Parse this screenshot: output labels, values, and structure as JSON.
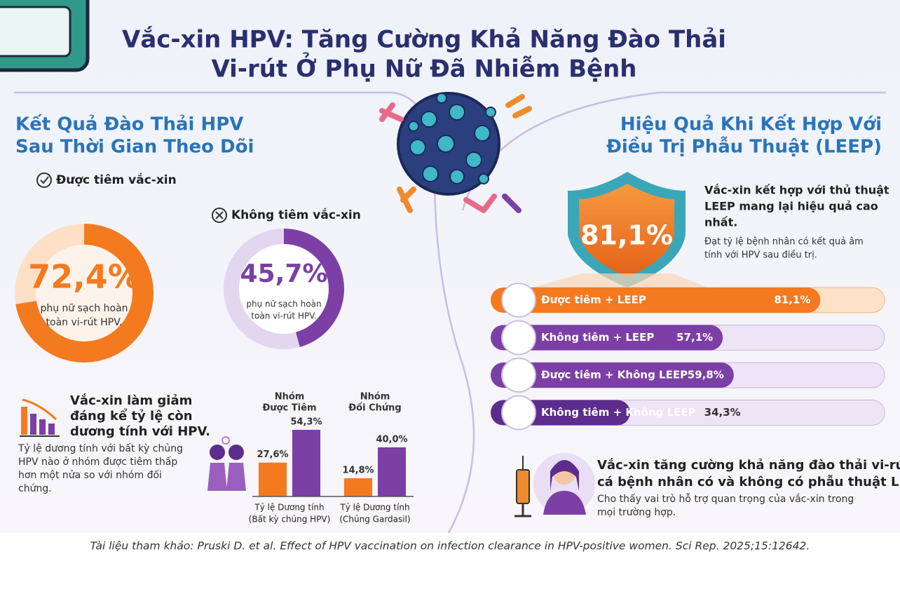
{
  "title_lines": [
    "Vắc-xin HPV: Tăng Cường Khả Năng Đào Thải",
    "Vi-rút Ở Phụ Nữ Đã Nhiễm Bệnh"
  ],
  "clearance": {
    "heading_lines": [
      "Kết Quả Đào Thải HPV",
      "Sau Thời Gian Theo Dõi"
    ],
    "scale": [
      0,
      100
    ],
    "groups": [
      {
        "label": "Được tiêm vắc-xin",
        "value": 72.4,
        "value_label": "72,4%",
        "caption_lines": [
          "phụ nữ sạch hoàn",
          "toàn vi-rút HPV."
        ],
        "color": "#f47a20"
      },
      {
        "label": "Không tiêm vắc-xin",
        "value": 45.7,
        "value_label": "45,7%",
        "caption_lines": [
          "phụ nữ sạch hoàn",
          "toàn vi-rút HPV."
        ],
        "color": "#7b3fa6"
      }
    ]
  },
  "positivity": {
    "heading_lines": [
      "Vắc-xin làm giảm",
      "đáng kể tỷ lệ còn",
      "dương tính với HPV."
    ],
    "text_lines": [
      "Tỷ lệ dương tính với bất kỳ chủng",
      "HPV nào ở nhóm được tiêm thấp",
      "hơn một nửa so với nhóm đối",
      "chứng."
    ],
    "chart": {
      "type": "bar",
      "ylim": [
        0,
        60
      ],
      "group_headers": [
        [
          "Nhóm",
          "Được Tiêm"
        ],
        [
          "Nhóm",
          "Đối Chứng"
        ]
      ],
      "categories": [
        [
          "Tỷ lệ Dương tính",
          "(Bất kỳ chủng HPV)"
        ],
        [
          "Tỷ lệ Dương tính",
          "(Chủng Gardasil)"
        ]
      ],
      "series": [
        {
          "color": "#f47a20",
          "values": [
            27.6,
            14.8
          ],
          "value_labels": [
            "27,6%",
            "14,8%"
          ]
        },
        {
          "color": "#7b3fa6",
          "values": [
            54.3,
            40.0
          ],
          "value_labels": [
            "54,3%",
            "40,0%"
          ]
        }
      ]
    }
  },
  "leep": {
    "heading_lines": [
      "Hiệu Quả Khi Kết Hợp Với",
      "Điều Trị Phẫu Thuật (LEEP)"
    ],
    "highlight_label": "81,1%",
    "summary_lines": [
      "Vắc-xin kết hợp với thủ thuật",
      "LEEP mang lại hiệu quả cao",
      "nhất."
    ],
    "detail_lines": [
      "Đạt tỷ lệ bệnh nhân có kết quả âm",
      "tính với HPV sau điều trị."
    ],
    "chart": {
      "type": "bar",
      "xlim": [
        0,
        100
      ],
      "rows": [
        {
          "name": "Được tiêm + LEEP",
          "value": 81.1,
          "value_label": "81,1%",
          "color": "#f47a20"
        },
        {
          "name": "Không tiêm + LEEP",
          "value": 57.1,
          "value_label": "57,1%",
          "color": "#7b3fa6"
        },
        {
          "name": "Được tiêm + Không LEEP",
          "value": 59.8,
          "value_label": "59,8%",
          "color": "#7b3fa6"
        },
        {
          "name": "Không tiêm + Không LEEP",
          "value": 34.3,
          "value_label": "34,3%",
          "color": "#5c2d8c"
        }
      ]
    }
  },
  "conclusion": {
    "heading_lines": [
      "Vắc-xin tăng cường khả năng đào thải vi-rút ở",
      "cá bệnh nhân có và không có phẫu thuật LEEP."
    ],
    "text_lines": [
      "Cho thấy vai trò hỗ trợ quan trọng của vắc-xin trong",
      "mọi trường hợp."
    ]
  },
  "reference": "Tài liệu tham khảo: Pruski D. et al. Effect of HPV vaccination on infection clearance in HPV-positive women. Sci Rep. 2025;15:12642."
}
